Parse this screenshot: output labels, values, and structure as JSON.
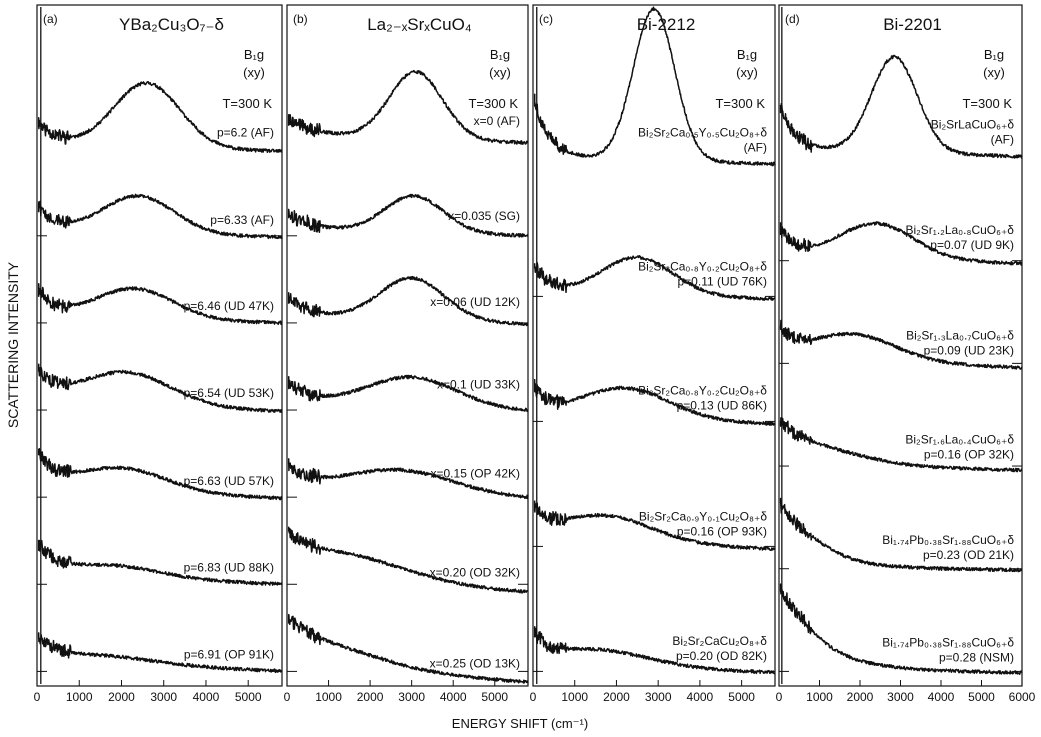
{
  "figure": {
    "ylabel": "SCATTERING INTENSITY",
    "xlabel": "ENERGY SHIFT (cm⁻¹)"
  },
  "chart_data": [
    {
      "type": "line",
      "panel_letter": "(a)",
      "title": "YBa₂Cu₃O₇₋δ",
      "symmetry": "B₁g",
      "polarization": "(xy)",
      "temperature": "T=300 K",
      "xlim": [
        0,
        5800
      ],
      "xticks": [
        0,
        1000,
        2000,
        3000,
        4000,
        5000
      ],
      "series": [
        {
          "name": "p=6.2 (AF)",
          "peak": 2600,
          "width": 1100,
          "amp": 2.3,
          "base": 0.1,
          "bg": 0.85,
          "bgdecay": 450,
          "tail": -0.25
        },
        {
          "name": "p=6.33 (AF)",
          "peak": 2400,
          "width": 1200,
          "amp": 1.35,
          "base": 0.1,
          "bg": 0.95,
          "bgdecay": 450,
          "tail": -0.2
        },
        {
          "name": "p=6.46 (UD 47K)",
          "peak": 2300,
          "width": 1300,
          "amp": 1.1,
          "base": 0.15,
          "bg": 1.0,
          "bgdecay": 450,
          "tail": -0.2
        },
        {
          "name": "p=6.54 (UD 53K)",
          "peak": 2100,
          "width": 1500,
          "amp": 1.2,
          "base": 0.2,
          "bg": 1.1,
          "bgdecay": 450,
          "tail": -0.3
        },
        {
          "name": "p=6.63 (UD 57K)",
          "peak": 2000,
          "width": 1500,
          "amp": 0.85,
          "base": 0.25,
          "bg": 1.2,
          "bgdecay": 450,
          "tail": -0.35
        },
        {
          "name": "p=6.83 (UD 88K)",
          "peak": 1800,
          "width": 1600,
          "amp": 0.45,
          "base": 0.25,
          "bg": 1.1,
          "bgdecay": 450,
          "tail": -0.3
        },
        {
          "name": "p=6.91 (OP 91K)",
          "peak": 1500,
          "width": 1800,
          "amp": 0.3,
          "base": 0.3,
          "bg": 0.8,
          "bgdecay": 400,
          "tail": -0.35
        }
      ]
    },
    {
      "type": "line",
      "panel_letter": "(b)",
      "title": "La₂₋ₓSrₓCuO₄",
      "symmetry": "B₁g",
      "polarization": "(xy)",
      "temperature": "T=300 K",
      "xlim": [
        0,
        5800
      ],
      "xticks": [
        0,
        1000,
        2000,
        3000,
        4000,
        5000
      ],
      "series": [
        {
          "name": "x=0 (AF)",
          "peak": 3100,
          "width": 900,
          "amp": 2.4,
          "base": 0.45,
          "bg": 0.6,
          "bgdecay": 600,
          "tail": -0.3
        },
        {
          "name": "x=0.035 (SG)",
          "peak": 3050,
          "width": 1000,
          "amp": 1.3,
          "base": 0.2,
          "bg": 0.6,
          "bgdecay": 500,
          "tail": -0.25
        },
        {
          "name": "x=0.06 (UD 12K)",
          "peak": 3000,
          "width": 1100,
          "amp": 1.5,
          "base": 0.2,
          "bg": 0.7,
          "bgdecay": 500,
          "tail": -0.3
        },
        {
          "name": "x=0.1  (UD 33K)",
          "peak": 3000,
          "width": 1500,
          "amp": 1.05,
          "base": 0.25,
          "bg": 0.7,
          "bgdecay": 500,
          "tail": -0.35
        },
        {
          "name": "x=0.15  (OP 42K)",
          "peak": 2700,
          "width": 1800,
          "amp": 0.8,
          "base": 0.3,
          "bg": 0.8,
          "bgdecay": 500,
          "tail": -0.4
        },
        {
          "name": "x=0.20  (OD 32K)",
          "peak": 1400,
          "width": 2100,
          "amp": 0.85,
          "base": 0.2,
          "bg": 1.1,
          "bgdecay": 700,
          "tail": -0.55
        },
        {
          "name": "x=0.25  (OD 13K)",
          "peak": 1000,
          "width": 2000,
          "amp": 0.6,
          "base": 0.15,
          "bg": 1.3,
          "bgdecay": 800,
          "tail": -0.6
        }
      ]
    },
    {
      "type": "line",
      "panel_letter": "(c)",
      "title": "Bi-2212",
      "symmetry": "B₁g",
      "polarization": "(xy)",
      "temperature": "T=300 K",
      "xlim": [
        0,
        5800
      ],
      "xticks": [
        0,
        1000,
        2000,
        3000,
        4000,
        5000
      ],
      "series": [
        {
          "name": "Bi₂Sr₂Ca₀.₅Y₀.₅Cu₂O₈₊δ (AF)",
          "peak": 2900,
          "width": 700,
          "amp": 5.4,
          "base": 0.5,
          "bg": 2.2,
          "bgdecay": 350,
          "tail": -0.3
        },
        {
          "name": "Bi₂Sr₂Ca₀.₈Y₀.₂Cu₂O₈₊δ p=0.11 (UD 76K)",
          "peak": 2500,
          "width": 1200,
          "amp": 1.35,
          "base": 0.1,
          "bg": 1.1,
          "bgdecay": 350,
          "tail": -0.25
        },
        {
          "name": "Bi₂Sr₂Ca₀.₈Y₀.₂Cu₂O₈₊δ p=0.13 (UD 86K)",
          "peak": 2200,
          "width": 1500,
          "amp": 1.1,
          "base": 0.15,
          "bg": 1.0,
          "bgdecay": 350,
          "tail": -0.3
        },
        {
          "name": "Bi₂Sr₂Ca₀.₉Y₀.₁Cu₂O₈₊δ p=0.16 (OP 93K)",
          "peak": 1700,
          "width": 1600,
          "amp": 0.95,
          "base": 0.2,
          "bg": 1.0,
          "bgdecay": 350,
          "tail": -0.35
        },
        {
          "name": "Bi₂Sr₂CaCu₂O₈₊δ p=0.20 (OD 82K)",
          "peak": 1500,
          "width": 1800,
          "amp": 0.6,
          "base": 0.2,
          "bg": 0.9,
          "bgdecay": 350,
          "tail": -0.3
        }
      ]
    },
    {
      "type": "line",
      "panel_letter": "(d)",
      "title": "Bi-2201",
      "symmetry": "B₁g",
      "polarization": "(xy)",
      "temperature": "T=300 K",
      "xlim": [
        0,
        6000
      ],
      "xticks": [
        0,
        1000,
        2000,
        3000,
        4000,
        5000,
        6000
      ],
      "series": [
        {
          "name": "Bi₂SrLaCuO₆₊δ (AF)",
          "peak": 2850,
          "width": 800,
          "amp": 3.4,
          "base": 0.3,
          "bg": 1.6,
          "bgdecay": 350,
          "tail": -0.3
        },
        {
          "name": "Bi₂Sr₁.₂La₀.₈CuO₆₊δ p=0.07 (UD 9K)",
          "peak": 2400,
          "width": 1300,
          "amp": 1.25,
          "base": 0.15,
          "bg": 1.0,
          "bgdecay": 350,
          "tail": -0.3
        },
        {
          "name": "Bi₂Sr₁.₃La₀.₇CuO₆₊δ p=0.09 (UD 23K)",
          "peak": 1800,
          "width": 1500,
          "amp": 0.95,
          "base": 0.15,
          "bg": 1.0,
          "bgdecay": 350,
          "tail": -0.35
        },
        {
          "name": "Bi₂Sr₁.₆La₀.₄CuO₆₊δ p=0.16 (OP 32K)",
          "peak": 900,
          "width": 1700,
          "amp": 0.45,
          "base": 0.05,
          "bg": 1.2,
          "bgdecay": 700,
          "tail": -0.25
        },
        {
          "name": "Bi₁.₇₄Pb₀.₃₈Sr₁.₈₈CuO₆₊δ p=0.23 (OD 21K)",
          "peak": 500,
          "width": 1000,
          "amp": 0.35,
          "base": 0.0,
          "bg": 2.0,
          "bgdecay": 900,
          "tail": -0.1
        },
        {
          "name": "Bi₁.₇₄Pb₀.₃₈Sr₁.₈₈CuO₆₊δ p=0.28 (NSM)",
          "peak": 400,
          "width": 800,
          "amp": 0.3,
          "base": 0.0,
          "bg": 2.7,
          "bgdecay": 1000,
          "tail": -0.1
        }
      ]
    }
  ]
}
